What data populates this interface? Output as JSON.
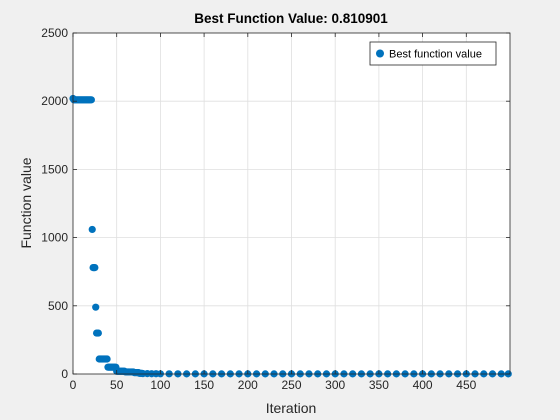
{
  "figure": {
    "background": "#f0f0f0"
  },
  "chart_data": {
    "type": "scatter",
    "title": "Best Function Value: 0.810901",
    "xlabel": "Iteration",
    "ylabel": "Function value",
    "xlim": [
      0,
      500
    ],
    "ylim": [
      0,
      2500
    ],
    "xticks": [
      "0",
      "50",
      "100",
      "150",
      "200",
      "250",
      "300",
      "350",
      "400",
      "450"
    ],
    "xtick_values": [
      0,
      50,
      100,
      150,
      200,
      250,
      300,
      350,
      400,
      450
    ],
    "yticks": [
      "0",
      "500",
      "1000",
      "1500",
      "2000",
      "2500"
    ],
    "ytick_values": [
      0,
      500,
      1000,
      1500,
      2000,
      2500
    ],
    "grid": true,
    "legend": {
      "placement": "top-right",
      "entries": [
        "Best function value"
      ]
    },
    "marker_color": "#0072bd",
    "series": [
      {
        "name": "Best function value",
        "x": [
          0,
          1,
          2,
          3,
          4,
          5,
          6,
          7,
          8,
          9,
          10,
          11,
          12,
          13,
          14,
          15,
          16,
          17,
          18,
          19,
          20,
          21,
          22,
          23,
          24,
          25,
          26,
          27,
          28,
          29,
          30,
          31,
          32,
          33,
          34,
          35,
          36,
          37,
          38,
          39,
          40,
          41,
          42,
          43,
          44,
          45,
          46,
          47,
          48,
          49,
          50,
          51,
          52,
          53,
          54,
          55,
          56,
          57,
          58,
          59,
          60,
          61,
          62,
          63,
          64,
          65,
          66,
          67,
          68,
          69,
          70,
          71,
          72,
          73,
          74,
          75,
          76,
          77,
          78,
          79,
          80,
          85,
          90,
          95,
          100,
          110,
          120,
          130,
          140,
          150,
          160,
          170,
          180,
          190,
          200,
          210,
          220,
          230,
          240,
          250,
          260,
          270,
          280,
          290,
          300,
          310,
          320,
          330,
          340,
          350,
          360,
          370,
          380,
          390,
          400,
          410,
          420,
          430,
          440,
          450,
          460,
          470,
          480,
          490,
          498
        ],
        "y": [
          2020,
          2010,
          2010,
          2010,
          2010,
          2010,
          2010,
          2010,
          2010,
          2010,
          2010,
          2010,
          2010,
          2010,
          2010,
          2010,
          2010,
          2010,
          2010,
          2010,
          2010,
          2010,
          1060,
          780,
          780,
          780,
          490,
          300,
          300,
          300,
          110,
          110,
          110,
          110,
          110,
          110,
          110,
          110,
          110,
          110,
          50,
          50,
          50,
          50,
          50,
          50,
          50,
          50,
          50,
          50,
          20,
          20,
          20,
          20,
          20,
          20,
          20,
          20,
          20,
          20,
          15,
          15,
          15,
          15,
          15,
          15,
          15,
          15,
          15,
          15,
          10,
          10,
          10,
          10,
          10,
          10,
          5,
          5,
          5,
          5,
          3,
          3,
          2,
          2,
          1.5,
          1.2,
          1.1,
          1.0,
          1.0,
          0.95,
          0.9,
          0.9,
          0.9,
          0.9,
          0.88,
          0.87,
          0.86,
          0.85,
          0.85,
          0.84,
          0.84,
          0.83,
          0.83,
          0.83,
          0.82,
          0.82,
          0.82,
          0.82,
          0.82,
          0.82,
          0.81,
          0.81,
          0.81,
          0.81,
          0.81,
          0.81,
          0.81,
          0.81,
          0.81,
          0.81,
          0.81,
          0.81,
          0.81,
          0.81,
          0.81
        ]
      }
    ]
  }
}
